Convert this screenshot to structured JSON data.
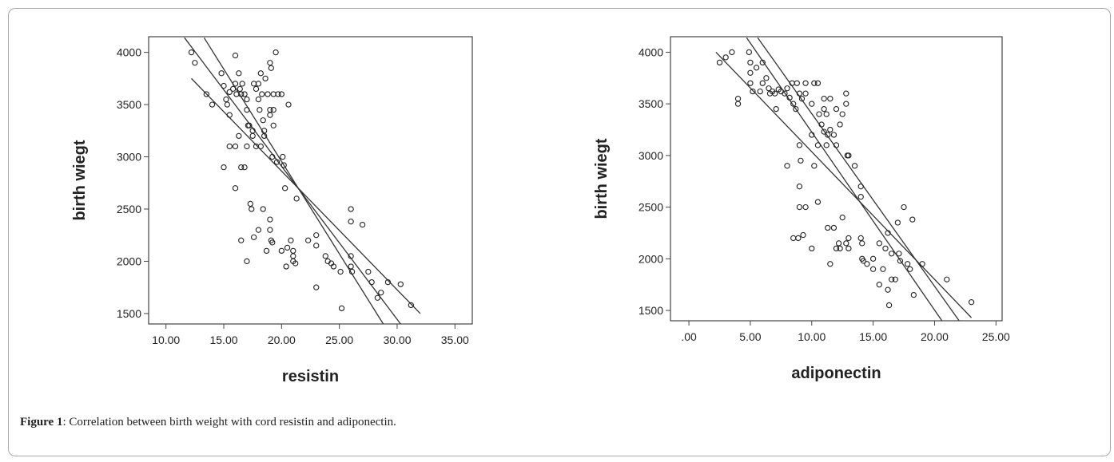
{
  "figure": {
    "caption_label": "Figure 1",
    "caption_text": ": Correlation between birth weight with cord resistin and adiponectin."
  },
  "chart_data": [
    {
      "type": "scatter",
      "xlabel": "resistin",
      "ylabel": "birth wiegt",
      "xlim": [
        8.5,
        36.5
      ],
      "ylim": [
        1400,
        4150
      ],
      "xticks": [
        "10.00",
        "15.00",
        "20.00",
        "25.00",
        "30.00",
        "35.00"
      ],
      "xtick_values": [
        10,
        15,
        20,
        25,
        30,
        35
      ],
      "yticks": [
        "1500",
        "2000",
        "2500",
        "3000",
        "3500",
        "4000"
      ],
      "ytick_values": [
        1500,
        2000,
        2500,
        3000,
        3500,
        4000
      ],
      "points": [
        [
          12.2,
          4000
        ],
        [
          12.5,
          3900
        ],
        [
          13.5,
          3600
        ],
        [
          14.0,
          3500
        ],
        [
          14.8,
          3800
        ],
        [
          15.0,
          3680
        ],
        [
          15.2,
          3550
        ],
        [
          15.3,
          3500
        ],
        [
          15.5,
          3620
        ],
        [
          15.5,
          3400
        ],
        [
          15.8,
          3650
        ],
        [
          16.0,
          3970
        ],
        [
          16.0,
          3700
        ],
        [
          16.1,
          3600
        ],
        [
          16.3,
          3800
        ],
        [
          16.4,
          3650
        ],
        [
          16.5,
          3600
        ],
        [
          16.6,
          3700
        ],
        [
          16.8,
          3600
        ],
        [
          17.0,
          3550
        ],
        [
          17.0,
          3450
        ],
        [
          17.1,
          3300
        ],
        [
          17.5,
          3200
        ],
        [
          17.6,
          3700
        ],
        [
          17.8,
          3650
        ],
        [
          18.0,
          3700
        ],
        [
          18.0,
          3550
        ],
        [
          18.1,
          3450
        ],
        [
          18.2,
          3800
        ],
        [
          18.3,
          3600
        ],
        [
          18.4,
          3350
        ],
        [
          18.5,
          3250
        ],
        [
          18.5,
          3200
        ],
        [
          18.6,
          3750
        ],
        [
          18.8,
          3600
        ],
        [
          19.0,
          3450
        ],
        [
          19.0,
          3400
        ],
        [
          19.0,
          3900
        ],
        [
          19.1,
          3850
        ],
        [
          19.3,
          3600
        ],
        [
          19.3,
          3450
        ],
        [
          19.3,
          3300
        ],
        [
          19.5,
          4000
        ],
        [
          19.7,
          3600
        ],
        [
          20.0,
          3600
        ],
        [
          20.1,
          3000
        ],
        [
          20.6,
          3500
        ],
        [
          15.0,
          2900
        ],
        [
          15.5,
          3100
        ],
        [
          16.0,
          3100
        ],
        [
          16.3,
          3200
        ],
        [
          16.5,
          2900
        ],
        [
          16.8,
          2900
        ],
        [
          17.0,
          3100
        ],
        [
          17.2,
          3300
        ],
        [
          17.5,
          3250
        ],
        [
          17.8,
          3100
        ],
        [
          18.2,
          3100
        ],
        [
          19.2,
          3000
        ],
        [
          19.6,
          2950
        ],
        [
          20.2,
          2920
        ],
        [
          20.3,
          2700
        ],
        [
          21.3,
          2600
        ],
        [
          16.0,
          2700
        ],
        [
          16.5,
          2200
        ],
        [
          17.0,
          2000
        ],
        [
          17.3,
          2550
        ],
        [
          17.4,
          2500
        ],
        [
          17.6,
          2230
        ],
        [
          18.0,
          2300
        ],
        [
          18.4,
          2500
        ],
        [
          18.7,
          2100
        ],
        [
          19.0,
          2400
        ],
        [
          19.0,
          2300
        ],
        [
          19.1,
          2200
        ],
        [
          19.2,
          2180
        ],
        [
          20.0,
          2100
        ],
        [
          20.4,
          1950
        ],
        [
          20.5,
          2130
        ],
        [
          20.8,
          2200
        ],
        [
          21.0,
          2100
        ],
        [
          21.0,
          2050
        ],
        [
          21.0,
          2000
        ],
        [
          21.2,
          1980
        ],
        [
          22.3,
          2200
        ],
        [
          23.0,
          2250
        ],
        [
          23.0,
          2150
        ],
        [
          23.0,
          1750
        ],
        [
          23.8,
          2050
        ],
        [
          24.0,
          2000
        ],
        [
          24.3,
          1980
        ],
        [
          24.5,
          1950
        ],
        [
          25.1,
          1900
        ],
        [
          25.2,
          1550
        ],
        [
          26.0,
          2500
        ],
        [
          26.0,
          2380
        ],
        [
          26.0,
          2050
        ],
        [
          26.0,
          1950
        ],
        [
          26.1,
          1900
        ],
        [
          27.0,
          2350
        ],
        [
          27.5,
          1900
        ],
        [
          27.8,
          1800
        ],
        [
          28.3,
          1650
        ],
        [
          28.6,
          1700
        ],
        [
          29.2,
          1800
        ],
        [
          30.3,
          1780
        ],
        [
          31.2,
          1580
        ]
      ],
      "fit_lines": [
        [
          [
            11.6,
            4140
          ],
          [
            30.3,
            1400
          ]
        ],
        [
          [
            13.3,
            4140
          ],
          [
            28.8,
            1400
          ]
        ],
        [
          [
            12.2,
            3750
          ],
          [
            32.0,
            1500
          ]
        ]
      ]
    },
    {
      "type": "scatter",
      "xlabel": "adiponectin",
      "ylabel": "birth wiegt",
      "xlim": [
        -1.5,
        25.5
      ],
      "ylim": [
        1400,
        4150
      ],
      "xticks": [
        ".00",
        "5.00",
        "10.00",
        "15.00",
        "20.00",
        "25.00"
      ],
      "xtick_values": [
        0,
        5,
        10,
        15,
        20,
        25
      ],
      "yticks": [
        "1500",
        "2000",
        "2500",
        "3000",
        "3500",
        "4000"
      ],
      "ytick_values": [
        1500,
        2000,
        2500,
        3000,
        3500,
        4000
      ],
      "points": [
        [
          2.5,
          3900
        ],
        [
          3.0,
          3950
        ],
        [
          3.5,
          4000
        ],
        [
          4.0,
          3550
        ],
        [
          4.0,
          3500
        ],
        [
          4.9,
          4000
        ],
        [
          5.0,
          3900
        ],
        [
          5.0,
          3800
        ],
        [
          5.0,
          3700
        ],
        [
          5.2,
          3620
        ],
        [
          5.5,
          3850
        ],
        [
          5.8,
          3620
        ],
        [
          6.0,
          3900
        ],
        [
          6.0,
          3700
        ],
        [
          6.3,
          3750
        ],
        [
          6.5,
          3650
        ],
        [
          6.6,
          3600
        ],
        [
          6.8,
          3620
        ],
        [
          7.0,
          3600
        ],
        [
          7.1,
          3450
        ],
        [
          7.3,
          3640
        ],
        [
          7.5,
          3620
        ],
        [
          7.8,
          3600
        ],
        [
          8.0,
          3650
        ],
        [
          8.2,
          3560
        ],
        [
          8.4,
          3700
        ],
        [
          8.5,
          3500
        ],
        [
          8.7,
          3450
        ],
        [
          8.8,
          3700
        ],
        [
          9.0,
          3600
        ],
        [
          9.2,
          3550
        ],
        [
          9.5,
          3700
        ],
        [
          9.5,
          3600
        ],
        [
          10.0,
          3500
        ],
        [
          10.2,
          3700
        ],
        [
          10.5,
          3700
        ],
        [
          10.6,
          3400
        ],
        [
          11.0,
          3550
        ],
        [
          11.0,
          3450
        ],
        [
          11.2,
          3400
        ],
        [
          11.5,
          3550
        ],
        [
          12.0,
          3450
        ],
        [
          12.5,
          3400
        ],
        [
          12.8,
          3600
        ],
        [
          12.8,
          3500
        ],
        [
          8.0,
          2900
        ],
        [
          9.0,
          3100
        ],
        [
          9.1,
          2950
        ],
        [
          10.0,
          3200
        ],
        [
          10.2,
          2900
        ],
        [
          10.5,
          3100
        ],
        [
          10.8,
          3300
        ],
        [
          11.0,
          3230
        ],
        [
          11.2,
          3100
        ],
        [
          11.3,
          3200
        ],
        [
          11.5,
          3250
        ],
        [
          11.8,
          3200
        ],
        [
          12.0,
          3100
        ],
        [
          12.3,
          3300
        ],
        [
          12.9,
          3000
        ],
        [
          13.0,
          3000
        ],
        [
          13.5,
          2900
        ],
        [
          14.0,
          2700
        ],
        [
          14.0,
          2600
        ],
        [
          8.5,
          2200
        ],
        [
          8.9,
          2200
        ],
        [
          9.0,
          2700
        ],
        [
          9.0,
          2500
        ],
        [
          9.3,
          2230
        ],
        [
          9.5,
          2500
        ],
        [
          10.0,
          2100
        ],
        [
          10.5,
          2550
        ],
        [
          11.3,
          2300
        ],
        [
          11.5,
          1950
        ],
        [
          11.8,
          2300
        ],
        [
          12.0,
          2100
        ],
        [
          12.2,
          2150
        ],
        [
          12.3,
          2100
        ],
        [
          12.5,
          2400
        ],
        [
          12.8,
          2150
        ],
        [
          13.0,
          2200
        ],
        [
          13.0,
          2100
        ],
        [
          14.0,
          2200
        ],
        [
          14.1,
          2150
        ],
        [
          14.1,
          2000
        ],
        [
          14.2,
          1980
        ],
        [
          14.5,
          1950
        ],
        [
          15.0,
          2000
        ],
        [
          15.0,
          1900
        ],
        [
          15.5,
          2150
        ],
        [
          15.5,
          1750
        ],
        [
          15.8,
          1900
        ],
        [
          16.0,
          2100
        ],
        [
          16.2,
          2250
        ],
        [
          16.2,
          1700
        ],
        [
          16.3,
          1550
        ],
        [
          16.5,
          2050
        ],
        [
          16.5,
          1800
        ],
        [
          16.8,
          1800
        ],
        [
          17.0,
          2350
        ],
        [
          17.1,
          2050
        ],
        [
          17.2,
          1980
        ],
        [
          17.5,
          2500
        ],
        [
          17.8,
          1950
        ],
        [
          18.0,
          1900
        ],
        [
          18.2,
          2380
        ],
        [
          18.3,
          1650
        ],
        [
          19.0,
          1950
        ],
        [
          21.0,
          1800
        ],
        [
          23.0,
          1580
        ]
      ],
      "fit_lines": [
        [
          [
            4.7,
            4140
          ],
          [
            20.6,
            1400
          ]
        ],
        [
          [
            5.6,
            4140
          ],
          [
            22.0,
            1400
          ]
        ],
        [
          [
            2.2,
            4000
          ],
          [
            23.0,
            1430
          ]
        ]
      ]
    }
  ]
}
